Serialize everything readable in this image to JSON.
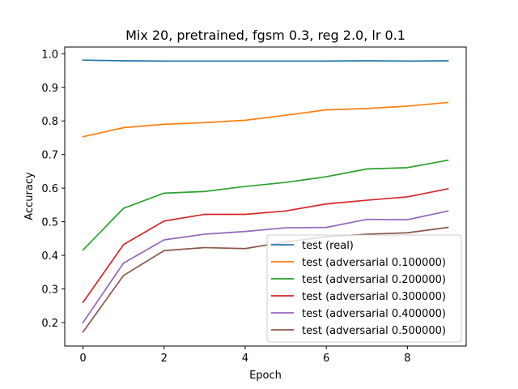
{
  "chart_data": {
    "type": "line",
    "title": "Mix 20, pretrained, fgsm 0.3, reg 2.0, lr 0.1",
    "xlabel": "Epoch",
    "ylabel": "Accuracy",
    "xlim": [
      -0.45,
      9.45
    ],
    "ylim": [
      0.13,
      1.02
    ],
    "xticks": [
      0,
      2,
      4,
      6,
      8
    ],
    "xtick_labels": [
      "0",
      "2",
      "4",
      "6",
      "8"
    ],
    "yticks": [
      0.2,
      0.3,
      0.4,
      0.5,
      0.6,
      0.7,
      0.8,
      0.9,
      1.0
    ],
    "ytick_labels": [
      "0.2",
      "0.3",
      "0.4",
      "0.5",
      "0.6",
      "0.7",
      "0.8",
      "0.9",
      "1.0"
    ],
    "grid": false,
    "legend_position": "lower-right",
    "x": [
      0,
      1,
      2,
      3,
      4,
      5,
      6,
      7,
      8,
      9
    ],
    "series": [
      {
        "name": "test (real)",
        "color": "#1f77b4",
        "values": [
          0.981,
          0.979,
          0.978,
          0.978,
          0.978,
          0.978,
          0.978,
          0.979,
          0.978,
          0.979
        ]
      },
      {
        "name": "test (adversarial 0.100000)",
        "color": "#ff7f0e",
        "values": [
          0.753,
          0.78,
          0.79,
          0.795,
          0.802,
          0.817,
          0.833,
          0.837,
          0.844,
          0.855
        ]
      },
      {
        "name": "test (adversarial 0.200000)",
        "color": "#2ca02c",
        "values": [
          0.416,
          0.54,
          0.585,
          0.59,
          0.605,
          0.617,
          0.634,
          0.657,
          0.661,
          0.683
        ]
      },
      {
        "name": "test (adversarial 0.300000)",
        "color": "#d62728",
        "values": [
          0.26,
          0.432,
          0.502,
          0.522,
          0.522,
          0.532,
          0.553,
          0.564,
          0.574,
          0.598
        ]
      },
      {
        "name": "test (adversarial 0.400000)",
        "color": "#9467bd",
        "values": [
          0.2,
          0.377,
          0.446,
          0.463,
          0.471,
          0.482,
          0.483,
          0.507,
          0.506,
          0.532
        ]
      },
      {
        "name": "test (adversarial 0.500000)",
        "color": "#8c564b",
        "values": [
          0.172,
          0.34,
          0.414,
          0.423,
          0.42,
          0.44,
          0.455,
          0.463,
          0.467,
          0.483
        ]
      }
    ]
  }
}
